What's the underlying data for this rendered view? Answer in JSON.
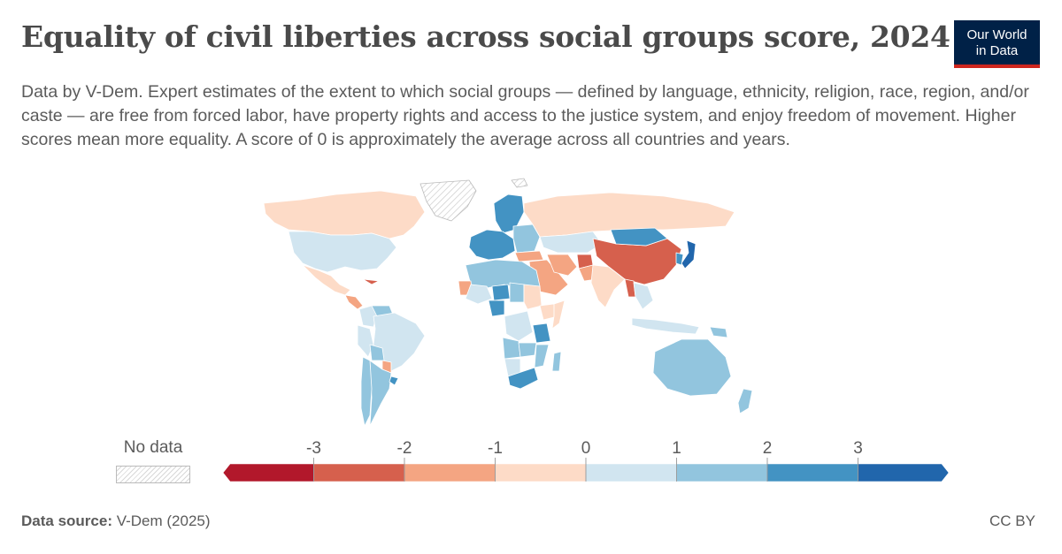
{
  "header": {
    "title": "Equality of civil liberties across social groups score, 2024",
    "subtitle": "Data by V-Dem. Expert estimates of the extent to which social groups — defined by language, ethnicity, religion, race, region, and/or caste — are free from forced labor, have property rights and access to the justice system, and enjoy freedom of movement. Higher scores mean more equality. A score of 0 is approximately the average across all countries and years."
  },
  "logo": {
    "line1": "Our World",
    "line2": "in Data"
  },
  "legend": {
    "no_data_label": "No data",
    "ticks": [
      "-3",
      "-2",
      "-1",
      "0",
      "1",
      "2",
      "3"
    ],
    "bins": [
      {
        "color": "#b2182b"
      },
      {
        "color": "#d6604d"
      },
      {
        "color": "#f4a582"
      },
      {
        "color": "#fddbc7"
      },
      {
        "color": "#d1e5f0"
      },
      {
        "color": "#92c5de"
      },
      {
        "color": "#4393c3"
      },
      {
        "color": "#2166ac"
      }
    ]
  },
  "colors": {
    "no_data": "#e6e6e6",
    "ocean": "#ffffff",
    "border": "#ffffff"
  },
  "regions": [
    {
      "name": "Greenland",
      "bin": -1
    },
    {
      "name": "Canada",
      "bin": 3
    },
    {
      "name": "United States",
      "bin": 4
    },
    {
      "name": "Mexico",
      "bin": 3
    },
    {
      "name": "Central America",
      "bin": 2
    },
    {
      "name": "Cuba",
      "bin": 1
    },
    {
      "name": "Colombia",
      "bin": 4
    },
    {
      "name": "Venezuela",
      "bin": 5
    },
    {
      "name": "Brazil",
      "bin": 4
    },
    {
      "name": "Peru",
      "bin": 4
    },
    {
      "name": "Bolivia",
      "bin": 5
    },
    {
      "name": "Paraguay",
      "bin": 2
    },
    {
      "name": "Argentina",
      "bin": 5
    },
    {
      "name": "Chile",
      "bin": 5
    },
    {
      "name": "Uruguay",
      "bin": 6
    },
    {
      "name": "Scandinavia",
      "bin": 6
    },
    {
      "name": "Western Europe",
      "bin": 6
    },
    {
      "name": "Eastern Europe",
      "bin": 5
    },
    {
      "name": "Russia",
      "bin": 3
    },
    {
      "name": "Kazakhstan",
      "bin": 4
    },
    {
      "name": "Turkey",
      "bin": 2
    },
    {
      "name": "Middle East",
      "bin": 2
    },
    {
      "name": "Iran",
      "bin": 2
    },
    {
      "name": "Afghanistan",
      "bin": 1
    },
    {
      "name": "Pakistan",
      "bin": 2
    },
    {
      "name": "India",
      "bin": 3
    },
    {
      "name": "China",
      "bin": 1
    },
    {
      "name": "Mongolia",
      "bin": 6
    },
    {
      "name": "Japan",
      "bin": 7
    },
    {
      "name": "Korea",
      "bin": 6
    },
    {
      "name": "Myanmar",
      "bin": 1
    },
    {
      "name": "Southeast Asia",
      "bin": 4
    },
    {
      "name": "Indonesia",
      "bin": 4
    },
    {
      "name": "Papua New Guinea",
      "bin": 5
    },
    {
      "name": "Australia",
      "bin": 5
    },
    {
      "name": "New Zealand",
      "bin": 5
    },
    {
      "name": "North Africa",
      "bin": 5
    },
    {
      "name": "Western Sahara",
      "bin": 2
    },
    {
      "name": "Mali",
      "bin": 4
    },
    {
      "name": "Niger",
      "bin": 6
    },
    {
      "name": "Nigeria",
      "bin": 6
    },
    {
      "name": "Chad",
      "bin": 5
    },
    {
      "name": "Sudan",
      "bin": 3
    },
    {
      "name": "Ethiopia",
      "bin": 3
    },
    {
      "name": "Somalia",
      "bin": 3
    },
    {
      "name": "DR Congo",
      "bin": 4
    },
    {
      "name": "Tanzania",
      "bin": 6
    },
    {
      "name": "Angola",
      "bin": 5
    },
    {
      "name": "Zambia",
      "bin": 5
    },
    {
      "name": "Mozambique",
      "bin": 5
    },
    {
      "name": "Namibia",
      "bin": 4
    },
    {
      "name": "South Africa",
      "bin": 6
    },
    {
      "name": "Madagascar",
      "bin": 5
    },
    {
      "name": "Svalbard",
      "bin": -1
    }
  ],
  "footer": {
    "source_label": "Data source:",
    "source_value": "V-Dem (2025)",
    "license": "CC BY"
  }
}
